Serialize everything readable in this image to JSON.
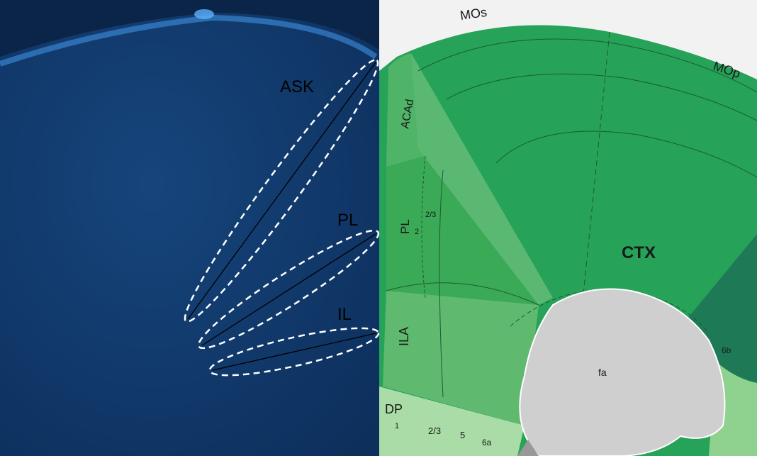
{
  "left_panel": {
    "regions": [
      {
        "label": "ASK"
      },
      {
        "label": "PL"
      },
      {
        "label": "IL"
      }
    ]
  },
  "right_panel": {
    "labels": [
      "MOs",
      "MOp",
      "ACAd",
      "PL",
      "2",
      "2/3",
      "CTX",
      "ILA",
      "DP",
      "1",
      "2/3",
      "5",
      "6a",
      "6b",
      "fa"
    ]
  }
}
